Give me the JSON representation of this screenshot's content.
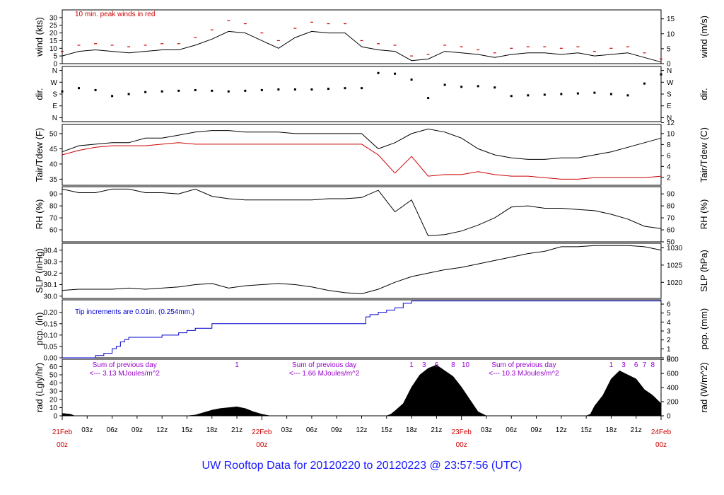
{
  "title": "UW Rooftop Data for 20120220  to  20120223 @ 23:57:56  (UTC)",
  "time_axis": {
    "day_labels": [
      {
        "day": "21Feb",
        "hour": "00z",
        "t": 0
      },
      {
        "day": "22Feb",
        "hour": "00z",
        "t": 24
      },
      {
        "day": "23Feb",
        "hour": "00z",
        "t": 48
      },
      {
        "day": "24Feb",
        "hour": "00z",
        "t": 72
      }
    ],
    "hour_ticks": [
      {
        "label": "03z",
        "t": 3
      },
      {
        "label": "06z",
        "t": 6
      },
      {
        "label": "09z",
        "t": 9
      },
      {
        "label": "12z",
        "t": 12
      },
      {
        "label": "15z",
        "t": 15
      },
      {
        "label": "18z",
        "t": 18
      },
      {
        "label": "21z",
        "t": 21
      },
      {
        "label": "03z",
        "t": 27
      },
      {
        "label": "06z",
        "t": 30
      },
      {
        "label": "09z",
        "t": 33
      },
      {
        "label": "12z",
        "t": 36
      },
      {
        "label": "15z",
        "t": 39
      },
      {
        "label": "18z",
        "t": 42
      },
      {
        "label": "21z",
        "t": 45
      },
      {
        "label": "03z",
        "t": 51
      },
      {
        "label": "06z",
        "t": 54
      },
      {
        "label": "09z",
        "t": 57
      },
      {
        "label": "12z",
        "t": 60
      },
      {
        "label": "15z",
        "t": 63
      },
      {
        "label": "18z",
        "t": 66
      },
      {
        "label": "21z",
        "t": 69
      }
    ]
  },
  "chart_data": [
    {
      "id": "wind",
      "type": "line",
      "ylabel": "wind (kts)",
      "ylabel_right": "wind (m/s)",
      "ylim": [
        0,
        35
      ],
      "yticks": [
        "0",
        "5",
        "10",
        "15",
        "20",
        "25",
        "30"
      ],
      "ytick_values": [
        0,
        5,
        10,
        15,
        20,
        25,
        30
      ],
      "yticks_right": [
        "0",
        "5",
        "10",
        "15"
      ],
      "ytick_right_values": [
        0,
        9.72,
        19.44,
        29.16
      ],
      "annotation": "10 min. peak winds in red",
      "x": [
        0,
        2,
        4,
        6,
        8,
        10,
        12,
        14,
        16,
        18,
        20,
        22,
        24,
        26,
        28,
        30,
        32,
        34,
        36,
        38,
        40,
        42,
        44,
        46,
        48,
        50,
        52,
        54,
        56,
        58,
        60,
        62,
        64,
        66,
        68,
        70,
        72
      ],
      "series": [
        {
          "color": "#000000",
          "values": [
            5,
            8,
            9,
            8,
            7,
            8,
            9,
            9,
            12,
            16,
            21,
            20,
            15,
            10,
            17,
            21,
            20,
            20,
            11,
            9,
            8,
            2,
            3,
            8,
            7,
            6,
            4,
            6,
            7,
            7,
            6,
            7,
            5,
            6,
            7,
            4,
            1
          ]
        },
        {
          "color": "#cc0000",
          "values": [
            8,
            12,
            13,
            12,
            11,
            12,
            13,
            13,
            17,
            22,
            28,
            26,
            20,
            15,
            23,
            27,
            26,
            26,
            15,
            13,
            12,
            5,
            6,
            12,
            11,
            9,
            7,
            10,
            11,
            11,
            10,
            11,
            8,
            10,
            11,
            7,
            3
          ]
        }
      ]
    },
    {
      "id": "dir",
      "type": "scatter",
      "ylabel": "dir.",
      "ylabel_right": "dir.",
      "ylim": [
        -30,
        390
      ],
      "yticks": [
        "N",
        "E",
        "S",
        "W",
        "N"
      ],
      "ytick_values": [
        0,
        90,
        180,
        270,
        360
      ],
      "yticks_right": [
        "N",
        "E",
        "S",
        "W",
        "N"
      ],
      "ytick_right_values": [
        0,
        90,
        180,
        270,
        360
      ],
      "x": [
        0,
        2,
        4,
        6,
        8,
        10,
        12,
        14,
        16,
        18,
        20,
        22,
        24,
        26,
        28,
        30,
        32,
        34,
        36,
        38,
        40,
        42,
        44,
        46,
        48,
        50,
        52,
        54,
        56,
        58,
        60,
        62,
        64,
        66,
        68,
        70,
        72
      ],
      "series": [
        {
          "color": "#000000",
          "values": [
            200,
            225,
            210,
            165,
            180,
            195,
            200,
            205,
            210,
            205,
            200,
            205,
            210,
            215,
            215,
            215,
            220,
            225,
            225,
            340,
            335,
            290,
            150,
            250,
            235,
            240,
            230,
            165,
            170,
            175,
            180,
            185,
            190,
            180,
            170,
            260,
            330
          ]
        }
      ]
    },
    {
      "id": "temp",
      "type": "line",
      "ylabel": "Tair/Tdew (F)",
      "ylabel_right": "Tair/Tdew (C)",
      "ylim": [
        33,
        53
      ],
      "yticks": [
        "35",
        "40",
        "45",
        "50"
      ],
      "ytick_values": [
        35,
        40,
        45,
        50
      ],
      "yticks_right": [
        "2",
        "4",
        "6",
        "8",
        "10",
        "12"
      ],
      "ytick_right_values": [
        35.6,
        39.2,
        42.8,
        46.4,
        50,
        53.6
      ],
      "x": [
        0,
        2,
        4,
        6,
        8,
        10,
        12,
        14,
        16,
        18,
        20,
        22,
        24,
        26,
        28,
        30,
        32,
        34,
        36,
        38,
        40,
        42,
        44,
        46,
        48,
        50,
        52,
        54,
        56,
        58,
        60,
        62,
        64,
        66,
        68,
        70,
        72
      ],
      "series": [
        {
          "name": "Tair",
          "color": "#000000",
          "values": [
            44,
            46,
            46.5,
            47,
            47,
            48.5,
            48.5,
            49.5,
            50.5,
            51,
            51,
            50.5,
            50.5,
            50.5,
            50,
            50,
            50,
            50,
            50,
            45,
            47,
            50,
            51.5,
            50.5,
            48.5,
            45,
            43,
            42,
            41.5,
            41.5,
            42,
            42,
            43,
            44,
            45.5,
            47,
            48.5
          ]
        },
        {
          "name": "Tdew",
          "color": "#cc0000",
          "values": [
            43,
            44.5,
            45.5,
            46,
            46,
            46,
            46.5,
            47,
            46.5,
            46.5,
            46.5,
            46.5,
            46.5,
            46.5,
            46.5,
            46.5,
            46.5,
            46.5,
            46.5,
            43,
            37,
            42.5,
            36,
            36.5,
            36.5,
            37.5,
            36.5,
            36,
            36,
            35.5,
            35,
            35,
            35.5,
            35.5,
            35.5,
            35.5,
            36
          ]
        }
      ]
    },
    {
      "id": "rh",
      "type": "line",
      "ylabel": "RH (%)",
      "ylabel_right": "RH (%)",
      "ylim": [
        50,
        96
      ],
      "yticks": [
        "60",
        "70",
        "80",
        "90"
      ],
      "ytick_values": [
        60,
        70,
        80,
        90
      ],
      "yticks_right": [
        "50",
        "60",
        "70",
        "80",
        "90"
      ],
      "ytick_right_values": [
        50,
        60,
        70,
        80,
        90
      ],
      "x": [
        0,
        2,
        4,
        6,
        8,
        10,
        12,
        14,
        16,
        18,
        20,
        22,
        24,
        26,
        28,
        30,
        32,
        34,
        36,
        38,
        40,
        42,
        44,
        46,
        48,
        50,
        52,
        54,
        56,
        58,
        60,
        62,
        64,
        66,
        68,
        70,
        72
      ],
      "series": [
        {
          "color": "#000000",
          "values": [
            94,
            91,
            91,
            94,
            94,
            91,
            91,
            90,
            94,
            88,
            86,
            85,
            85,
            85,
            85,
            85,
            86,
            86,
            87,
            93,
            75,
            85,
            55,
            56,
            59,
            64,
            70,
            79,
            80,
            78,
            78,
            77,
            76,
            73,
            69,
            63,
            61
          ]
        }
      ]
    },
    {
      "id": "slp",
      "type": "line",
      "ylabel": "SLP (inHg)",
      "ylabel_right": "SLP (hPa)",
      "ylim": [
        29.98,
        30.46
      ],
      "yticks": [
        "30.0",
        "30.1",
        "30.2",
        "30.3",
        "30.4"
      ],
      "ytick_values": [
        30.0,
        30.1,
        30.2,
        30.3,
        30.4
      ],
      "yticks_right": [
        "1020",
        "1025",
        "1030"
      ],
      "ytick_right_values": [
        30.12,
        30.27,
        30.42
      ],
      "x": [
        0,
        2,
        4,
        6,
        8,
        10,
        12,
        14,
        16,
        18,
        20,
        22,
        24,
        26,
        28,
        30,
        32,
        34,
        36,
        38,
        40,
        42,
        44,
        46,
        48,
        50,
        52,
        54,
        56,
        58,
        60,
        62,
        64,
        66,
        68,
        70,
        72
      ],
      "series": [
        {
          "color": "#000000",
          "values": [
            30.05,
            30.06,
            30.06,
            30.06,
            30.07,
            30.06,
            30.07,
            30.08,
            30.1,
            30.11,
            30.07,
            30.09,
            30.1,
            30.11,
            30.1,
            30.08,
            30.05,
            30.03,
            30.02,
            30.06,
            30.12,
            30.17,
            30.2,
            30.23,
            30.25,
            30.28,
            30.31,
            30.34,
            30.37,
            30.39,
            30.43,
            30.43,
            30.44,
            30.44,
            30.44,
            30.43,
            30.4
          ]
        }
      ]
    },
    {
      "id": "pcp",
      "type": "line",
      "ylabel": "pcp. (in)",
      "ylabel_right": "pcp. (mm)",
      "ylim": [
        0,
        0.255
      ],
      "yticks": [
        "0.00",
        "0.05",
        "0.10",
        "0.15",
        "0.20"
      ],
      "ytick_values": [
        0,
        0.05,
        0.1,
        0.15,
        0.2
      ],
      "yticks_right": [
        "0",
        "1",
        "2",
        "3",
        "4",
        "5",
        "6"
      ],
      "ytick_right_values": [
        0,
        0.0394,
        0.0787,
        0.1181,
        0.1575,
        0.1969,
        0.2362
      ],
      "annotation": "Tip increments are 0.01in. (0.254mm.)",
      "x": [
        0,
        3,
        4,
        5,
        6,
        6.5,
        7,
        7.5,
        8,
        10,
        12,
        14,
        15,
        16,
        17,
        18,
        24,
        30,
        36,
        36.5,
        37,
        38,
        39,
        40,
        41,
        42,
        60,
        72
      ],
      "series": [
        {
          "color": "#0000cc",
          "values": [
            0,
            0,
            0.01,
            0.02,
            0.04,
            0.05,
            0.07,
            0.08,
            0.09,
            0.09,
            0.1,
            0.11,
            0.12,
            0.13,
            0.13,
            0.15,
            0.15,
            0.15,
            0.15,
            0.18,
            0.19,
            0.2,
            0.21,
            0.22,
            0.24,
            0.25,
            0.25,
            0.25
          ]
        }
      ]
    },
    {
      "id": "rad",
      "type": "area",
      "ylabel": "rad (Lgly/hr)",
      "ylabel_right": "rad (W/m^2)",
      "ylim": [
        0,
        69
      ],
      "yticks": [
        "0",
        "10",
        "20",
        "30",
        "40",
        "50",
        "60"
      ],
      "ytick_values": [
        0,
        10,
        20,
        30,
        40,
        50,
        60
      ],
      "yticks_right": [
        "0",
        "200",
        "400",
        "600",
        "800"
      ],
      "ytick_right_values": [
        0,
        17.2,
        34.4,
        51.6,
        68.8
      ],
      "annotations": [
        {
          "line1": "Sum of previous day",
          "line2": "<--- 3.13 MJoules/m^2",
          "t": 7.5
        },
        {
          "line1": "Sum of previous day",
          "line2": "<--- 1.66 MJoules/m^2",
          "t": 31.5
        },
        {
          "line1": "Sum of previous day",
          "line2": "<--- 10.3 MJoules/m^2",
          "t": 55.5
        }
      ],
      "hour_marks": [
        {
          "label": "1",
          "t": 21
        },
        {
          "label": "1",
          "t": 42
        },
        {
          "label": "3",
          "t": 43.5
        },
        {
          "label": "6",
          "t": 45
        },
        {
          "label": "8",
          "t": 47
        },
        {
          "label": "10",
          "t": 48.5
        },
        {
          "label": "1",
          "t": 66
        },
        {
          "label": "3",
          "t": 67.5
        },
        {
          "label": "6",
          "t": 69
        },
        {
          "label": "7",
          "t": 70
        },
        {
          "label": "8",
          "t": 71
        }
      ],
      "x": [
        0,
        1,
        1.5,
        15,
        16,
        17,
        18,
        19,
        20,
        21,
        22,
        23,
        24,
        25,
        39,
        39.5,
        40,
        41,
        42,
        43,
        44,
        45,
        46,
        47,
        48,
        49,
        50,
        51,
        63,
        63.5,
        64,
        65,
        66,
        67,
        68,
        69,
        70,
        71,
        72
      ],
      "series": [
        {
          "color": "#000000",
          "values": [
            3,
            2,
            0,
            0,
            1,
            4,
            7,
            9,
            10,
            11,
            9,
            5,
            2,
            0,
            0,
            2,
            6,
            15,
            35,
            50,
            58,
            62,
            55,
            48,
            35,
            20,
            5,
            0,
            0,
            2,
            12,
            25,
            45,
            55,
            50,
            45,
            32,
            25,
            15
          ]
        }
      ]
    }
  ]
}
